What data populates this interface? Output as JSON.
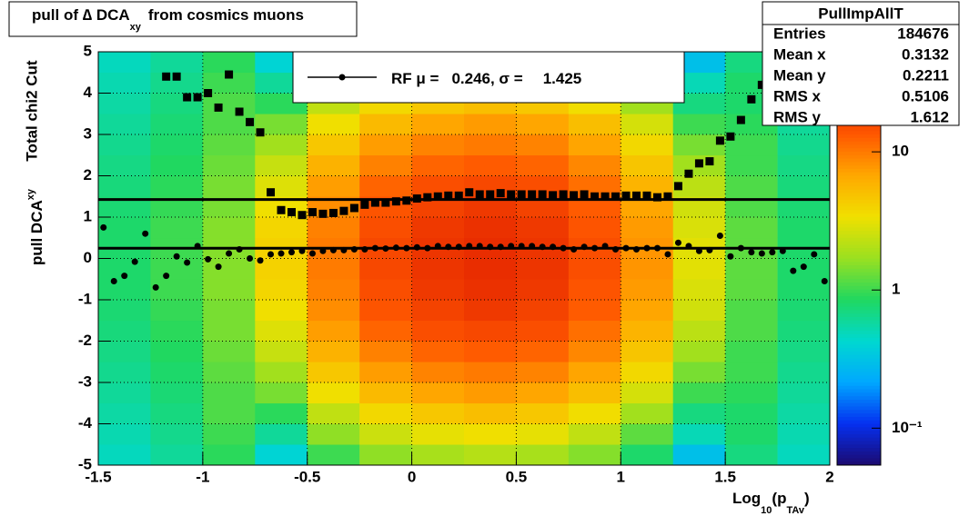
{
  "chart_data": {
    "type": "heatmap",
    "title": [
      "pull of ∆ DCA",
      "xy",
      "from cosmics muons"
    ],
    "y_label": [
      "pull DCA",
      "xy"
    ],
    "side_label": "Total chi2 Cut",
    "x_label": [
      "Log",
      "10",
      "(p",
      "TAv",
      ")"
    ],
    "xlim": [
      -1.5,
      2
    ],
    "xticks": [
      -1.5,
      -1,
      -0.5,
      0,
      0.5,
      1,
      1.5,
      2
    ],
    "ylim": [
      -5,
      5
    ],
    "yticks": [
      -5,
      -4,
      -3,
      -2,
      -1,
      0,
      1,
      2,
      3,
      4,
      5
    ],
    "grid": true,
    "heatmap": {
      "xbins": [
        -1.5,
        -1.25,
        -1,
        -0.75,
        -0.5,
        -0.25,
        0,
        0.25,
        0.5,
        0.75,
        1,
        1.25,
        1.5,
        1.75,
        2
      ],
      "ybins": [
        -5,
        -4.5,
        -4,
        -3.5,
        -3,
        -2.5,
        -2,
        -1.5,
        -1,
        -0.5,
        0,
        0.5,
        1,
        1.5,
        2,
        2.5,
        3,
        3.5,
        4,
        4.5,
        5
      ],
      "z": [
        [
          0.48,
          0.6,
          0.9,
          0.4,
          1,
          1.6,
          1.9,
          2.1,
          1.9,
          1.5,
          0.8,
          0.3,
          0.7,
          0.48
        ],
        [
          0.52,
          0.65,
          1,
          0.6,
          1.6,
          2.5,
          3.1,
          3.4,
          3.1,
          2.3,
          1.2,
          0.5,
          0.8,
          0.52
        ],
        [
          0.56,
          0.7,
          1.1,
          0.9,
          2.3,
          3.7,
          4.6,
          5.1,
          4.6,
          3.5,
          1.8,
          0.7,
          0.8,
          0.56
        ],
        [
          0.6,
          0.75,
          1.1,
          1.4,
          3.4,
          5.4,
          6.8,
          7.5,
          6.8,
          5.1,
          2.7,
          1,
          0.9,
          0.6
        ],
        [
          0.64,
          0.8,
          1.2,
          1.8,
          4.6,
          7.4,
          9.2,
          10,
          9.2,
          6.9,
          3.7,
          1.4,
          1,
          0.64
        ],
        [
          0.68,
          0.85,
          1.3,
          2.4,
          5.9,
          9.4,
          12,
          13,
          12,
          8.9,
          4.7,
          1.8,
          1,
          0.68
        ],
        [
          0.72,
          0.9,
          1.4,
          2.9,
          7.3,
          12,
          15,
          16,
          15,
          11,
          5.8,
          2.2,
          1.1,
          0.72
        ],
        [
          0.76,
          0.95,
          1.4,
          3.4,
          8.5,
          14,
          17,
          19,
          17,
          13,
          6.8,
          2.6,
          1.1,
          0.76
        ],
        [
          0.8,
          1,
          1.5,
          3.8,
          9.4,
          15,
          19,
          21,
          19,
          14,
          7.5,
          2.8,
          1.2,
          0.8
        ],
        [
          0.8,
          1,
          1.5,
          4,
          9.9,
          16,
          20,
          22,
          20,
          15,
          7.9,
          3,
          1.2,
          0.8
        ],
        [
          0.8,
          1,
          1.5,
          4,
          9.9,
          16,
          20,
          22,
          20,
          15,
          7.9,
          3,
          1.2,
          0.8
        ],
        [
          0.8,
          1,
          1.5,
          3.8,
          9.4,
          15,
          19,
          21,
          19,
          14,
          7.5,
          2.8,
          1.2,
          0.8
        ],
        [
          0.76,
          0.95,
          1.4,
          3.4,
          8.5,
          14,
          17,
          19,
          17,
          13,
          6.8,
          2.6,
          1.1,
          0.76
        ],
        [
          0.72,
          0.9,
          1.4,
          2.9,
          7.3,
          12,
          15,
          16,
          15,
          11,
          5.8,
          2.2,
          1.1,
          0.72
        ],
        [
          0.68,
          0.85,
          1.3,
          2.4,
          5.9,
          9.4,
          12,
          13,
          12,
          8.9,
          4.7,
          1.8,
          1,
          0.68
        ],
        [
          0.64,
          0.8,
          1.2,
          1.8,
          4.6,
          7.4,
          9.2,
          10,
          9.2,
          6.9,
          3.7,
          1.4,
          1,
          0.64
        ],
        [
          0.6,
          0.75,
          1.1,
          1.4,
          3.4,
          5.4,
          6.8,
          7.5,
          6.8,
          5.1,
          2.7,
          1,
          0.9,
          0.6
        ],
        [
          0.56,
          0.7,
          1.1,
          0.9,
          2.3,
          3.7,
          4.6,
          5.1,
          4.6,
          3.5,
          1.8,
          0.7,
          0.8,
          0.56
        ],
        [
          0.52,
          0.65,
          1,
          0.6,
          1.6,
          2.5,
          3.1,
          3.4,
          3.1,
          2.3,
          1.2,
          0.5,
          0.8,
          0.52
        ],
        [
          0.48,
          0.6,
          0.9,
          0.4,
          1,
          1.6,
          1.9,
          2.1,
          1.9,
          1.5,
          0.8,
          0.3,
          0.7,
          0.48
        ]
      ],
      "zlim": [
        0.054,
        53
      ],
      "zticks": [
        10,
        1,
        {
          "value": 0.1,
          "label": "10⁻¹"
        }
      ],
      "log": true,
      "palette": [
        "#1c0a70",
        "#0530f0",
        "#00a8ff",
        "#00d8d0",
        "#20d860",
        "#9ae020",
        "#f0e000",
        "#ffa800",
        "#ff5800",
        "#e01c00",
        "#961000"
      ]
    },
    "x": [
      -1.475,
      -1.425,
      -1.375,
      -1.325,
      -1.275,
      -1.225,
      -1.175,
      -1.125,
      -1.075,
      -1.025,
      -0.975,
      -0.925,
      -0.875,
      -0.825,
      -0.775,
      -0.725,
      -0.675,
      -0.625,
      -0.575,
      -0.525,
      -0.475,
      -0.425,
      -0.375,
      -0.325,
      -0.275,
      -0.225,
      -0.175,
      -0.125,
      -0.075,
      -0.025,
      0.025,
      0.075,
      0.125,
      0.175,
      0.225,
      0.275,
      0.325,
      0.375,
      0.425,
      0.475,
      0.525,
      0.575,
      0.625,
      0.675,
      0.725,
      0.775,
      0.825,
      0.875,
      0.925,
      0.975,
      1.025,
      1.075,
      1.125,
      1.175,
      1.225,
      1.275,
      1.325,
      1.375,
      1.425,
      1.475,
      1.525,
      1.575,
      1.625,
      1.675,
      1.725,
      1.775,
      1.825,
      1.875,
      1.925,
      1.975
    ],
    "series": [
      {
        "marker": "circle",
        "color": "#000000",
        "values": [
          0.75,
          -0.55,
          -0.42,
          -0.08,
          0.6,
          -0.7,
          -0.42,
          0.05,
          -0.1,
          0.3,
          -0.02,
          -0.2,
          0.12,
          0.22,
          0,
          -0.05,
          0.1,
          0.12,
          0.15,
          0.18,
          0.12,
          0.18,
          0.2,
          0.2,
          0.22,
          0.22,
          0.25,
          0.24,
          0.26,
          0.25,
          0.27,
          0.25,
          0.3,
          0.28,
          0.28,
          0.3,
          0.3,
          0.28,
          0.28,
          0.3,
          0.3,
          0.3,
          0.28,
          0.28,
          0.25,
          0.22,
          0.28,
          0.25,
          0.3,
          0.22,
          0.25,
          0.22,
          0.25,
          0.25,
          0.1,
          0.38,
          0.3,
          0.18,
          0.2,
          0.55,
          0.05,
          0.25,
          0.15,
          0.12,
          0.15,
          0.18,
          -0.3,
          -0.2,
          0.1,
          -0.55
        ]
      },
      {
        "marker": "square",
        "color": "#000000",
        "values": [
          null,
          null,
          null,
          null,
          null,
          null,
          4.4,
          4.4,
          3.9,
          3.9,
          4.0,
          3.65,
          4.45,
          3.55,
          3.3,
          3.05,
          1.6,
          1.17,
          1.12,
          1.05,
          1.12,
          1.08,
          1.1,
          1.15,
          1.22,
          1.3,
          1.35,
          1.35,
          1.38,
          1.4,
          1.45,
          1.48,
          1.5,
          1.52,
          1.52,
          1.6,
          1.55,
          1.55,
          1.58,
          1.55,
          1.55,
          1.55,
          1.55,
          1.53,
          1.55,
          1.53,
          1.55,
          1.5,
          1.5,
          1.5,
          1.52,
          1.52,
          1.52,
          1.48,
          1.5,
          1.75,
          2.05,
          2.3,
          2.35,
          2.85,
          2.95,
          3.35,
          3.85,
          4.2,
          4.45,
          null,
          null,
          null,
          null,
          null
        ]
      }
    ],
    "fit": {
      "label": "RF μ =",
      "mu": 0.246,
      "sep": ", σ =",
      "sigma": 1.425,
      "color": "#000000"
    },
    "stats": {
      "title": "PullImpAllT",
      "rows": [
        {
          "label": "Entries",
          "value": 184676
        },
        {
          "label": "Mean x",
          "value": 0.3132
        },
        {
          "label": "Mean y",
          "value": 0.2211
        },
        {
          "label": "RMS x",
          "value": 0.5106
        },
        {
          "label": "RMS y",
          "value": 1.612
        }
      ]
    }
  }
}
